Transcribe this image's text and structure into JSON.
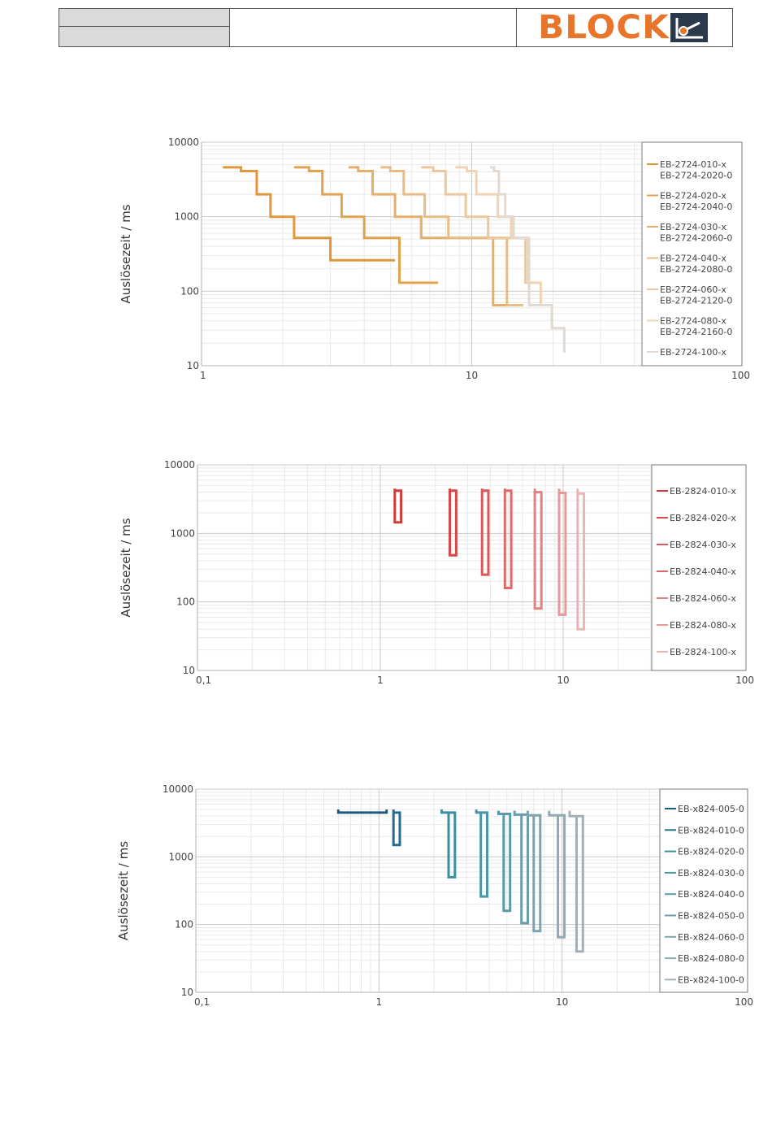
{
  "header": {
    "brand": "BLOCK",
    "brand_color": "#e8752a"
  },
  "chart_data": [
    {
      "type": "line",
      "ylabel": "Auslösezeit / ms",
      "xlabel": "",
      "xscale": "log",
      "yscale": "log",
      "xlim": [
        1,
        100
      ],
      "ylim": [
        10,
        10000
      ],
      "xticks": [
        "1",
        "10",
        "100"
      ],
      "yticks": [
        "10",
        "100",
        "1000",
        "10000"
      ],
      "grid": true,
      "legend_position": "right",
      "series": [
        {
          "name": "EB-2724-010-x\nEB-2724-2020-0",
          "color": "#e0963a",
          "x": [
            1.2,
            1.4,
            1.4,
            1.6,
            1.6,
            1.8,
            1.8,
            2.2,
            2.2,
            3.0,
            3.0,
            5.2
          ],
          "y": [
            4600,
            4600,
            4100,
            4100,
            2000,
            2000,
            1000,
            1000,
            520,
            520,
            260,
            260
          ]
        },
        {
          "name": "EB-2724-020-x\nEB-2724-2040-0",
          "color": "#e3a24e",
          "x": [
            2.2,
            2.5,
            2.5,
            2.8,
            2.8,
            3.3,
            3.3,
            4.0,
            4.0,
            5.4,
            5.4,
            7.5
          ],
          "y": [
            4600,
            4600,
            4100,
            4100,
            2000,
            2000,
            1000,
            1000,
            520,
            520,
            130,
            130
          ]
        },
        {
          "name": "EB-2724-030-x\nEB-2724-2060-0",
          "color": "#e6ae68",
          "x": [
            3.5,
            3.8,
            3.8,
            4.3,
            4.3,
            5.2,
            5.2,
            6.5,
            6.5,
            12.0,
            12.0,
            13.5
          ],
          "y": [
            4600,
            4600,
            4100,
            4100,
            2000,
            2000,
            1000,
            1000,
            520,
            520,
            65,
            65
          ]
        },
        {
          "name": "EB-2724-040-x\nEB-2724-2080-0",
          "color": "#e9bc84",
          "x": [
            4.6,
            5.0,
            5.0,
            5.6,
            5.6,
            6.7,
            6.7,
            8.2,
            8.2,
            13.5,
            13.5,
            15.5
          ],
          "y": [
            4600,
            4600,
            4100,
            4100,
            2000,
            2000,
            1000,
            1000,
            520,
            520,
            65,
            65
          ]
        },
        {
          "name": "EB-2724-060-x\nEB-2724-2120-0",
          "color": "#ecc79c",
          "x": [
            6.5,
            7.2,
            7.2,
            8.0,
            8.0,
            9.5,
            9.5,
            11.5,
            11.5,
            15.8,
            15.8,
            17.0
          ],
          "y": [
            4600,
            4600,
            4100,
            4100,
            2000,
            2000,
            1000,
            1000,
            520,
            520,
            130,
            130
          ]
        },
        {
          "name": "EB-2724-080-x\nEB-2724-2160-0",
          "color": "#efd3b3",
          "x": [
            8.7,
            9.6,
            9.6,
            10.4,
            10.4,
            12.5,
            12.5,
            14.0,
            14.0,
            16.0,
            16.0,
            18.0,
            18.0,
            20.0
          ],
          "y": [
            4600,
            4600,
            4100,
            4100,
            2000,
            2000,
            1000,
            1000,
            520,
            520,
            130,
            130,
            65,
            65
          ]
        },
        {
          "name": "EB-2724-100-x",
          "color": "#e2d9d2",
          "x": [
            11.7,
            12.1,
            12.1,
            12.6,
            12.6,
            13.3,
            13.3,
            14.3,
            14.3,
            16.3,
            16.3,
            19.8,
            19.8,
            22.0,
            22.0
          ],
          "y": [
            4600,
            4600,
            4100,
            4100,
            2000,
            2000,
            1000,
            1000,
            520,
            520,
            65,
            65,
            32,
            32,
            15
          ]
        }
      ]
    },
    {
      "type": "line",
      "ylabel": "Auslösezeit / ms",
      "xlabel": "",
      "xscale": "log",
      "yscale": "log",
      "xlim": [
        0.1,
        100
      ],
      "ylim": [
        10,
        10000
      ],
      "xticks": [
        "0,1",
        "1",
        "10",
        "100"
      ],
      "yticks": [
        "10",
        "100",
        "1000",
        "10000"
      ],
      "grid": true,
      "legend_position": "right",
      "series": [
        {
          "name": "EB-2824-010-x",
          "color": "#d03a3a",
          "x": [
            1.2,
            1.2,
            1.3,
            1.3,
            1.2,
            1.2
          ],
          "y": [
            4500,
            4200,
            4200,
            1450,
            1450,
            4200
          ]
        },
        {
          "name": "EB-2824-020-x",
          "color": "#d84848",
          "x": [
            2.4,
            2.4,
            2.6,
            2.6,
            2.4,
            2.4
          ],
          "y": [
            4500,
            4200,
            4200,
            480,
            480,
            4200
          ]
        },
        {
          "name": "EB-2824-030-x",
          "color": "#dc5757",
          "x": [
            3.6,
            3.6,
            3.9,
            3.9,
            3.6,
            3.6
          ],
          "y": [
            4500,
            4200,
            4200,
            250,
            250,
            4200
          ]
        },
        {
          "name": "EB-2824-040-x",
          "color": "#e06a6a",
          "x": [
            4.8,
            4.8,
            5.2,
            5.2,
            4.8,
            4.8
          ],
          "y": [
            4500,
            4200,
            4200,
            160,
            160,
            4200
          ]
        },
        {
          "name": "EB-2824-060-x",
          "color": "#e48080",
          "x": [
            7.0,
            7.0,
            7.6,
            7.6,
            7.0,
            7.0
          ],
          "y": [
            4500,
            4000,
            4000,
            80,
            80,
            4000
          ]
        },
        {
          "name": "EB-2824-080-x",
          "color": "#e89898",
          "x": [
            9.5,
            9.5,
            10.3,
            10.3,
            9.5,
            9.5
          ],
          "y": [
            4500,
            3900,
            3900,
            65,
            65,
            3900
          ]
        },
        {
          "name": "EB-2824-100-x",
          "color": "#ecb4b4",
          "x": [
            12.0,
            12.0,
            13.0,
            13.0,
            12.0,
            12.0
          ],
          "y": [
            4500,
            3800,
            3800,
            40,
            40,
            3800
          ]
        }
      ]
    },
    {
      "type": "line",
      "ylabel": "Auslösezeit / ms",
      "xlabel": "",
      "xscale": "log",
      "yscale": "log",
      "xlim": [
        0.1,
        100
      ],
      "ylim": [
        10,
        10000
      ],
      "xticks": [
        "0,1",
        "1",
        "10",
        "100"
      ],
      "yticks": [
        "10",
        "100",
        "1000",
        "10000"
      ],
      "grid": true,
      "legend_position": "right",
      "series": [
        {
          "name": "EB-x824-005-0",
          "color": "#1e5a7e",
          "x": [
            0.6,
            0.6,
            1.1,
            1.1
          ],
          "y": [
            5000,
            4500,
            4500,
            5000
          ]
        },
        {
          "name": "EB-x824-010-0",
          "color": "#236e8e",
          "x": [
            1.2,
            1.2,
            1.3,
            1.3,
            1.2,
            1.2
          ],
          "y": [
            5000,
            4500,
            4500,
            1500,
            1500,
            4500
          ]
        },
        {
          "name": "EB-x824-020-0",
          "color": "#3a8ea0",
          "x": [
            2.2,
            2.2,
            2.6,
            2.6,
            2.4,
            2.4
          ],
          "y": [
            5000,
            4500,
            4500,
            500,
            500,
            4500
          ]
        },
        {
          "name": "EB-x824-030-0",
          "color": "#4896a6",
          "x": [
            3.4,
            3.4,
            3.9,
            3.9,
            3.6,
            3.6
          ],
          "y": [
            5000,
            4500,
            4500,
            260,
            260,
            4500
          ]
        },
        {
          "name": "EB-x824-040-0",
          "color": "#5a9aa8",
          "x": [
            4.5,
            4.5,
            5.2,
            5.2,
            4.8,
            4.8
          ],
          "y": [
            4800,
            4300,
            4300,
            160,
            160,
            4300
          ]
        },
        {
          "name": "EB-x824-050-0",
          "color": "#6a9eaa",
          "x": [
            5.5,
            5.5,
            6.5,
            6.5,
            6.0,
            6.0
          ],
          "y": [
            4800,
            4200,
            4200,
            105,
            105,
            4200
          ]
        },
        {
          "name": "EB-x824-060-0",
          "color": "#7ca4ae",
          "x": [
            6.5,
            6.5,
            7.6,
            7.6,
            7.0,
            7.0
          ],
          "y": [
            4800,
            4100,
            4100,
            80,
            80,
            4100
          ]
        },
        {
          "name": "EB-x824-080-0",
          "color": "#8eaab2",
          "x": [
            8.5,
            8.5,
            10.3,
            10.3,
            9.5,
            9.5
          ],
          "y": [
            4800,
            4100,
            4100,
            65,
            65,
            4100
          ]
        },
        {
          "name": "EB-x824-100-0",
          "color": "#a4b0b6",
          "x": [
            11.0,
            11.0,
            13.0,
            13.0,
            12.0,
            12.0
          ],
          "y": [
            4800,
            4000,
            4000,
            40,
            40,
            4000
          ]
        }
      ]
    }
  ]
}
